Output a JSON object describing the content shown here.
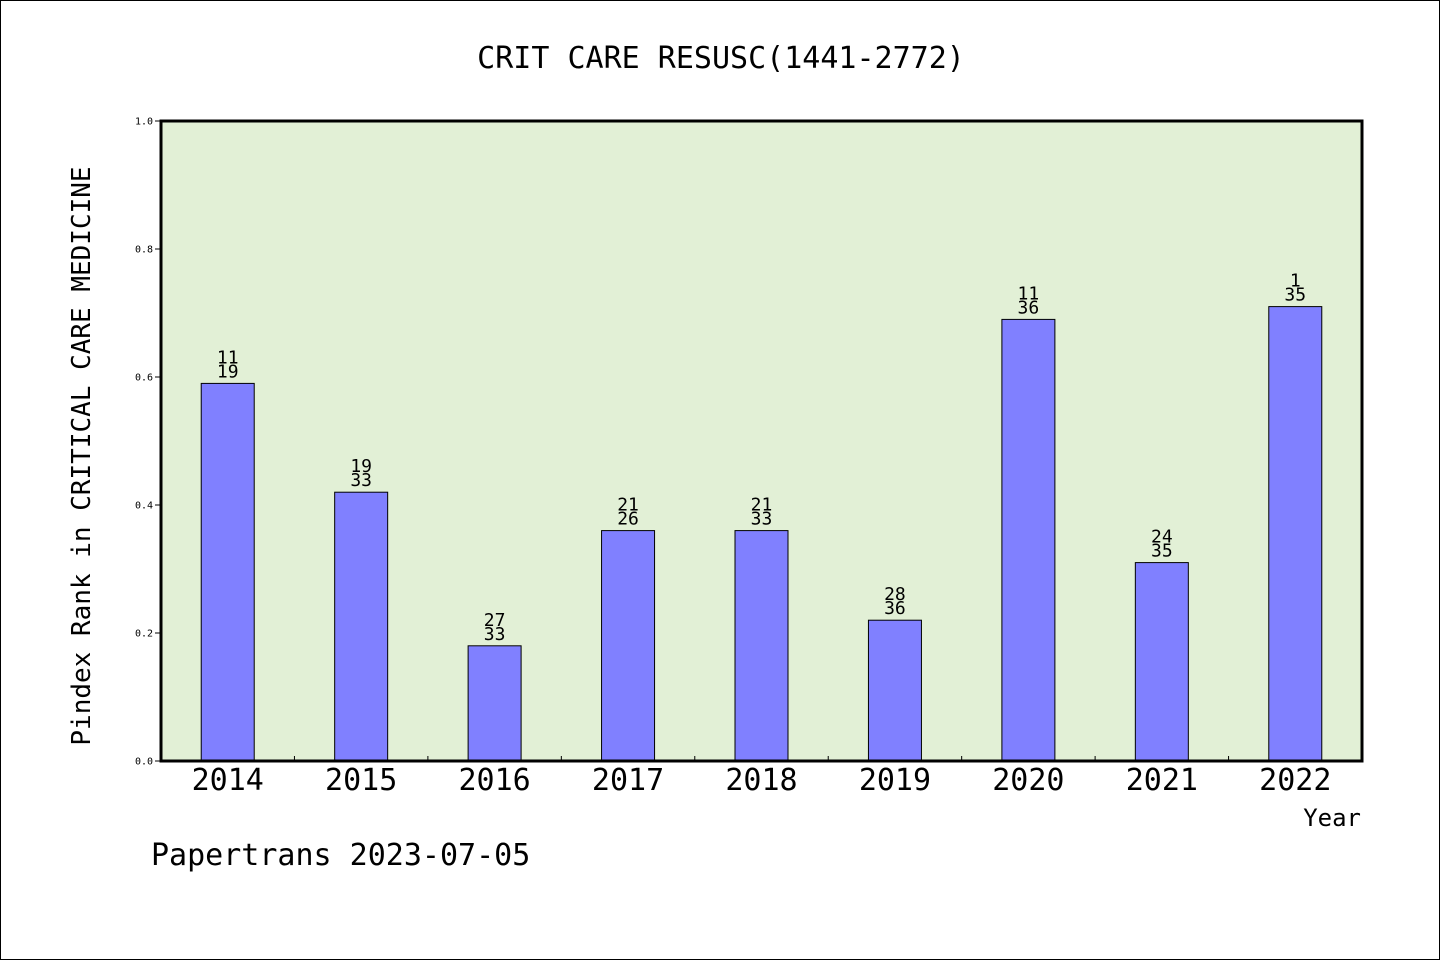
{
  "chart_data": {
    "type": "bar",
    "title": "CRIT CARE RESUSC(1441-2772)",
    "xlabel": "Year",
    "ylabel": "Pindex Rank in CRITICAL CARE MEDICINE",
    "ylim": [
      0,
      1.0
    ],
    "yticks": [
      "0.0",
      "0.2",
      "0.4",
      "0.6",
      "0.8",
      "1.0"
    ],
    "categories": [
      "2014",
      "2015",
      "2016",
      "2017",
      "2018",
      "2019",
      "2020",
      "2021",
      "2022"
    ],
    "values": [
      0.59,
      0.42,
      0.18,
      0.36,
      0.36,
      0.22,
      0.69,
      0.31,
      0.71
    ],
    "labels_top": [
      "11",
      "19",
      "27",
      "21",
      "21",
      "28",
      "11",
      "24",
      "1"
    ],
    "labels_bottom": [
      "19",
      "33",
      "33",
      "26",
      "33",
      "36",
      "36",
      "35",
      "35"
    ],
    "grid": false,
    "legend": "none",
    "colors": {
      "plot_background": "#e2f0d6",
      "bar_fill": "#8080ff",
      "bar_stroke": "#000000"
    }
  },
  "footer": "Papertrans 2023-07-05"
}
